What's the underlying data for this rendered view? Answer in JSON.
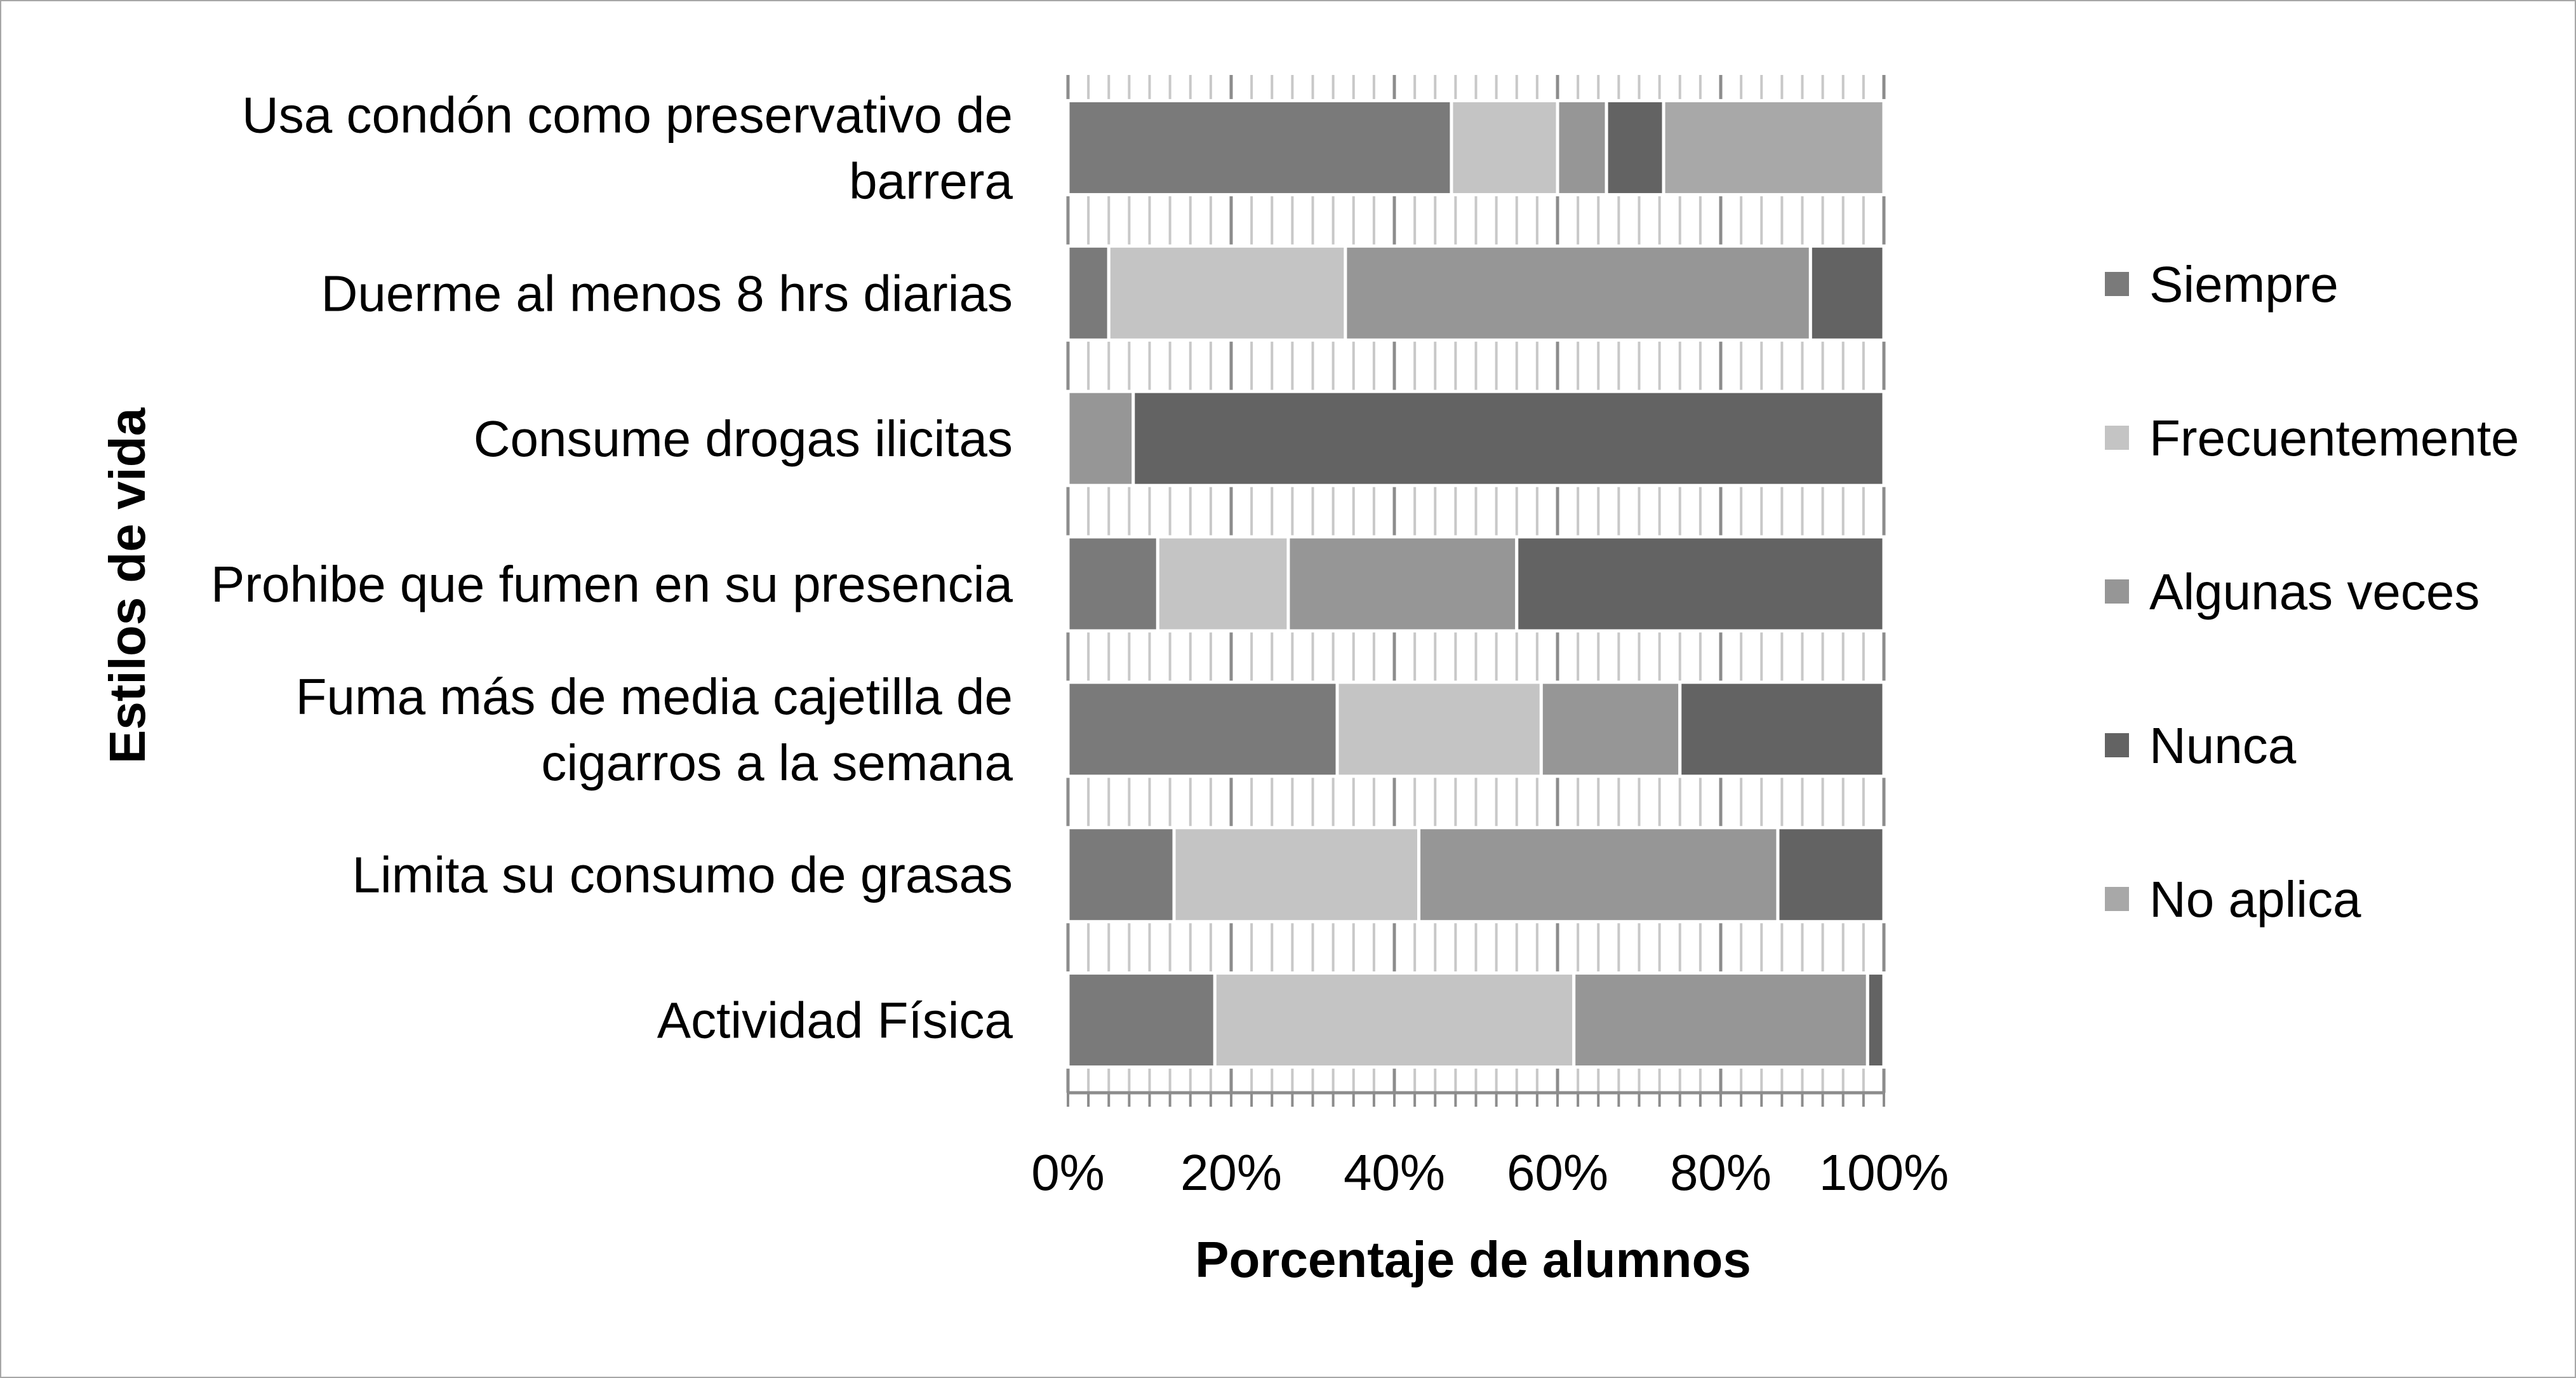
{
  "chart_data": {
    "type": "bar",
    "orientation": "horizontal",
    "stacked": "percent",
    "xlabel": "Porcentaje de alumnos",
    "ylabel": "Estilos de vida",
    "xlim": [
      0,
      100
    ],
    "x_ticks": [
      "0%",
      "20%",
      "40%",
      "60%",
      "80%",
      "100%"
    ],
    "grid": true,
    "legend_position": "right",
    "categories": [
      "Usa condón como preservativo de barrera",
      "Duerme al menos 8 hrs diarias",
      "Consume drogas ilicitas",
      "Prohibe que fumen en su presencia",
      "Fuma más de media cajetilla de cigarros a la semana",
      "Limita su consumo de grasas",
      "Actividad Física"
    ],
    "category_lines": [
      [
        "Usa condón como preservativo de",
        "barrera"
      ],
      [
        "Duerme al menos 8 hrs diarias"
      ],
      [
        "Consume drogas ilicitas"
      ],
      [
        "Prohibe que fumen en su presencia"
      ],
      [
        "Fuma más de media cajetilla de",
        "cigarros a la semana"
      ],
      [
        "Limita su consumo de grasas"
      ],
      [
        "Actividad Física"
      ]
    ],
    "series": [
      {
        "name": "Siempre",
        "color": "#7a7a7a",
        "values": [
          47,
          5,
          0,
          11,
          33,
          13,
          18
        ]
      },
      {
        "name": "Frecuentemente",
        "color": "#c4c4c4",
        "values": [
          13,
          29,
          0,
          16,
          25,
          30,
          44
        ]
      },
      {
        "name": "Algunas veces",
        "color": "#969696",
        "values": [
          6,
          57,
          8,
          28,
          17,
          44,
          36
        ]
      },
      {
        "name": "Nunca",
        "color": "#636363",
        "values": [
          7,
          9,
          92,
          45,
          25,
          13,
          2
        ]
      },
      {
        "name": "No aplica",
        "color": "#a8a8a8",
        "values": [
          27,
          0,
          0,
          0,
          0,
          0,
          0
        ]
      }
    ]
  }
}
